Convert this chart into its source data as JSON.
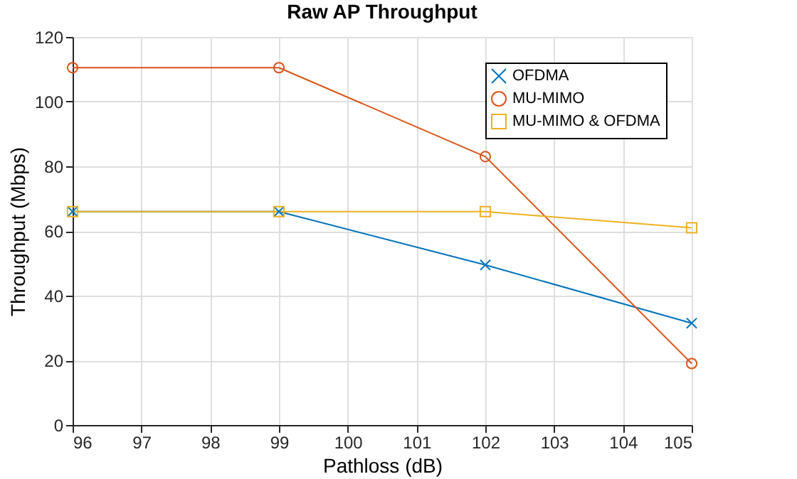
{
  "chart_data": {
    "type": "line",
    "title": "Raw AP Throughput",
    "xlabel": "Pathloss (dB)",
    "ylabel": "Throughput (Mbps)",
    "x": [
      96,
      99,
      102,
      105
    ],
    "series": [
      {
        "name": "OFDMA",
        "color": "#0072bd",
        "marker": "cross",
        "values": [
          66,
          66,
          49.5,
          31.5
        ]
      },
      {
        "name": "MU-MIMO",
        "color": "#d95319",
        "marker": "circle",
        "values": [
          110.5,
          110.5,
          83,
          19
        ]
      },
      {
        "name": "MU-MIMO & OFDMA",
        "color": "#edb120",
        "marker": "square",
        "values": [
          66,
          66,
          66,
          61
        ]
      }
    ],
    "xlim": [
      96,
      105
    ],
    "xticks": [
      96,
      97,
      98,
      99,
      100,
      101,
      102,
      103,
      104,
      105
    ],
    "ylim": [
      0,
      120
    ],
    "yticks": [
      0,
      20,
      40,
      60,
      80,
      100,
      120
    ],
    "grid": true,
    "legend": "top right",
    "line_style": "solid"
  }
}
